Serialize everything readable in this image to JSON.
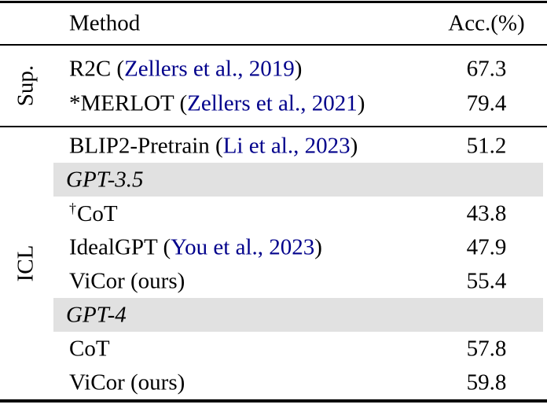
{
  "header": {
    "method": "Method",
    "acc": "Acc.(%)"
  },
  "groups": {
    "sup": {
      "label": "Sup.",
      "rows": [
        {
          "pre": "R2C (",
          "cite": "Zellers et al., 2019",
          "post": ")",
          "acc": "67.3"
        },
        {
          "pre": "*MERLOT (",
          "cite": "Zellers et al., 2021",
          "post": ")",
          "acc": "79.4"
        }
      ]
    },
    "icl": {
      "label": "ICL",
      "rows": [
        {
          "pre": "BLIP2-Pretrain (",
          "cite": "Li et al., 2023",
          "post": ")",
          "acc": "51.2"
        },
        {
          "subheader": "GPT-3.5"
        },
        {
          "dagger": "†",
          "pre": "CoT",
          "acc": "43.8"
        },
        {
          "pre": "IdealGPT (",
          "cite": "You et al., 2023",
          "post": ")",
          "acc": "47.9"
        },
        {
          "pre": "ViCor (ours)",
          "acc": "55.4"
        },
        {
          "subheader": "GPT-4"
        },
        {
          "pre": "CoT",
          "acc": "57.8"
        },
        {
          "pre": "ViCor (ours)",
          "acc": "59.8"
        }
      ]
    }
  },
  "colors": {
    "citation": "#00008B",
    "row_shade": "#e1e1e1",
    "rule": "#000000"
  }
}
